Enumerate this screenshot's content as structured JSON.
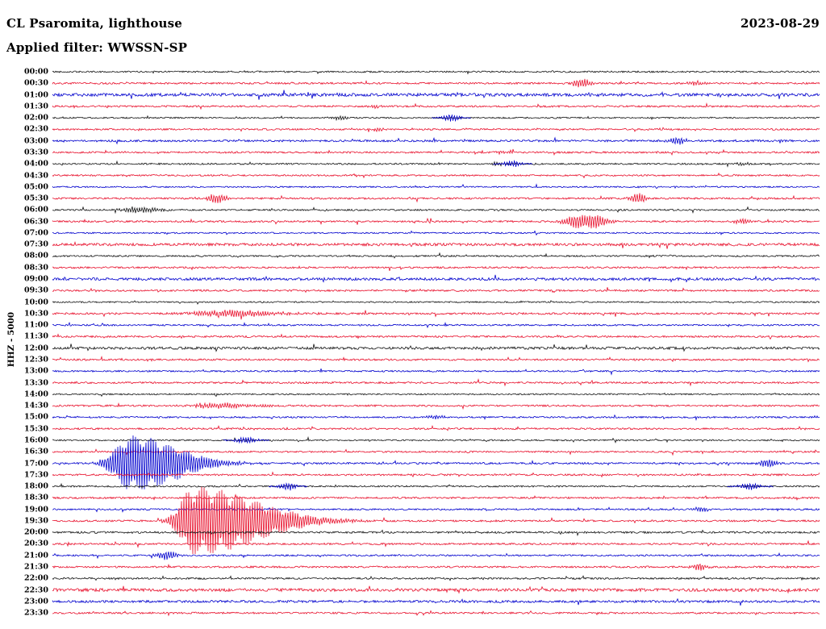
{
  "header": {
    "station_title": "CL Psaromita, lighthouse",
    "date": "2023-08-29",
    "filter_label": "Applied filter: WWSSN-SP"
  },
  "axis": {
    "channel_label": "HHZ - 5000",
    "row_labels": [
      "00:00",
      "00:30",
      "01:00",
      "01:30",
      "02:00",
      "02:30",
      "03:00",
      "03:30",
      "04:00",
      "04:30",
      "05:00",
      "05:30",
      "06:00",
      "06:30",
      "07:00",
      "07:30",
      "08:00",
      "08:30",
      "09:00",
      "09:30",
      "10:00",
      "10:30",
      "11:00",
      "11:30",
      "12:00",
      "12:30",
      "13:00",
      "13:30",
      "14:00",
      "14:30",
      "15:00",
      "15:30",
      "16:00",
      "16:30",
      "17:00",
      "17:30",
      "18:00",
      "18:30",
      "19:00",
      "19:30",
      "20:00",
      "20:30",
      "21:00",
      "21:30",
      "22:00",
      "22:30",
      "23:00",
      "23:30"
    ]
  },
  "chart_data": {
    "type": "line",
    "title": "Helicorder day plot, station CL Psaromita (lighthouse), channel HHZ, scale 5000, filter WWSSN-SP, 2023-08-29",
    "rows": 48,
    "minutes_per_row": 30,
    "start_time": "00:00",
    "end_time": "23:30",
    "background": "#ffffff",
    "color_cycle": [
      "#141414",
      "#e8112d",
      "#0000cd",
      "#e8112d"
    ],
    "noise_base_amplitude": 1.1,
    "row_noise_multipliers": [
      0.9,
      1.0,
      1.7,
      1.0,
      0.8,
      0.9,
      1.1,
      1.0,
      0.9,
      0.9,
      0.8,
      1.0,
      0.9,
      1.0,
      0.8,
      1.5,
      0.9,
      1.0,
      1.5,
      1.0,
      0.8,
      1.1,
      0.9,
      1.0,
      1.4,
      1.0,
      0.9,
      1.0,
      0.8,
      1.0,
      0.9,
      1.0,
      0.8,
      0.9,
      1.0,
      1.0,
      0.9,
      1.0,
      0.9,
      1.0,
      1.1,
      1.0,
      0.9,
      1.0,
      1.0,
      1.7,
      1.3,
      1.0
    ],
    "events": [
      {
        "time": "00:30",
        "row": 1,
        "frac": 0.69,
        "amp": 5,
        "width": 3
      },
      {
        "time": "00:30",
        "row": 1,
        "frac": 0.84,
        "amp": 2.5,
        "width": 2.5
      },
      {
        "time": "01:30",
        "row": 3,
        "frac": 0.42,
        "amp": 2,
        "width": 2
      },
      {
        "time": "02:00",
        "row": 4,
        "frac": 0.375,
        "amp": 2.5,
        "width": 2.5
      },
      {
        "time": "02:00",
        "row": 4,
        "frac": 0.52,
        "amp": 4.5,
        "width": 2.5,
        "color": "#0000cd"
      },
      {
        "time": "02:30",
        "row": 5,
        "frac": 0.425,
        "amp": 2,
        "width": 2
      },
      {
        "time": "03:00",
        "row": 6,
        "frac": 0.815,
        "amp": 4,
        "width": 3
      },
      {
        "time": "03:30",
        "row": 7,
        "frac": 0.585,
        "amp": 2,
        "width": 2
      },
      {
        "time": "04:00",
        "row": 8,
        "frac": 0.58,
        "amp": 2.5,
        "width": 2
      },
      {
        "time": "04:00",
        "row": 8,
        "frac": 0.6,
        "amp": 4,
        "width": 2.5,
        "color": "#0000cd"
      },
      {
        "time": "04:00",
        "row": 8,
        "frac": 0.9,
        "amp": 2,
        "width": 2
      },
      {
        "time": "05:30",
        "row": 11,
        "frac": 0.214,
        "amp": 6,
        "width": 3
      },
      {
        "time": "05:30",
        "row": 11,
        "frac": 0.763,
        "amp": 6.5,
        "width": 2.5
      },
      {
        "time": "06:00",
        "row": 12,
        "frac": 0.115,
        "amp": 3,
        "width": 6
      },
      {
        "time": "06:30",
        "row": 13,
        "frac": 0.68,
        "amp": 7,
        "width": 3.5
      },
      {
        "time": "06:30",
        "row": 13,
        "frac": 0.707,
        "amp": 8,
        "width": 4
      },
      {
        "time": "06:30",
        "row": 13,
        "frac": 0.9,
        "amp": 3,
        "width": 2.5
      },
      {
        "time": "10:30",
        "row": 21,
        "frac": 0.225,
        "amp": 4,
        "width": 10,
        "coda": 1.6
      },
      {
        "time": "14:30",
        "row": 29,
        "frac": 0.215,
        "amp": 3,
        "width": 8,
        "coda": 1.5
      },
      {
        "time": "15:00",
        "row": 30,
        "frac": 0.5,
        "amp": 2.5,
        "width": 2.5
      },
      {
        "time": "16:00",
        "row": 32,
        "frac": 0.253,
        "amp": 4,
        "width": 3,
        "color": "#0000cd"
      },
      {
        "time": "17:00",
        "row": 34,
        "frac": 0.103,
        "amp": 34,
        "width": 6,
        "coda": 3
      },
      {
        "time": "17:00",
        "row": 34,
        "frac": 0.932,
        "amp": 4.5,
        "width": 3
      },
      {
        "time": "18:00",
        "row": 36,
        "frac": 0.307,
        "amp": 4.5,
        "width": 2.5,
        "color": "#0000cd"
      },
      {
        "time": "18:00",
        "row": 36,
        "frac": 0.91,
        "amp": 4,
        "width": 3,
        "color": "#0000cd"
      },
      {
        "time": "19:00",
        "row": 38,
        "frac": 0.845,
        "amp": 3,
        "width": 2.5
      },
      {
        "time": "19:30",
        "row": 39,
        "frac": 0.184,
        "amp": 42,
        "width": 5,
        "coda": 5
      },
      {
        "time": "21:00",
        "row": 42,
        "frac": 0.15,
        "amp": 5,
        "width": 3
      },
      {
        "time": "21:30",
        "row": 43,
        "frac": 0.843,
        "amp": 4,
        "width": 2.5
      }
    ]
  }
}
